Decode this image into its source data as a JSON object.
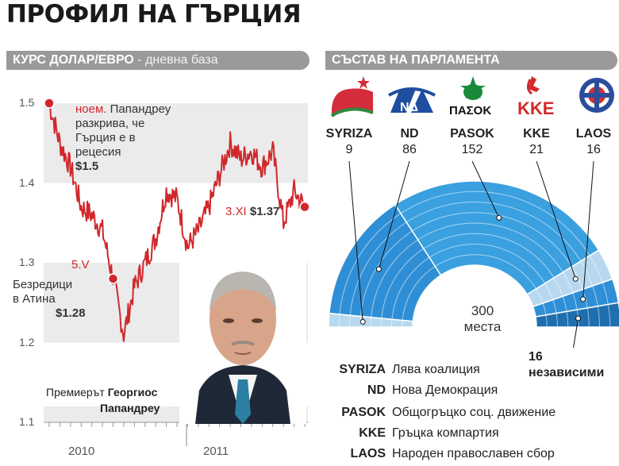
{
  "page": {
    "title": "ПРОФИЛ НА ГЪРЦИЯ"
  },
  "left_panel": {
    "header_main": "КУРС ДОЛАР/ЕВРО",
    "header_sub": " - дневна база"
  },
  "right_panel": {
    "header_main": "СЪСТАВ НА ПАРЛАМЕНТА"
  },
  "annotations": {
    "nov_date": "ноем.",
    "nov_text_1": "Папандреу",
    "nov_text_2": "разкрива, че",
    "nov_text_3": "Гърция е в",
    "nov_text_4": "рецесия",
    "nov_value": "$1.5",
    "may_date": "5.V",
    "may_text_1": "Безредици",
    "may_text_2": "в Атина",
    "may_value": "$1.28",
    "xi_date": "3.XI",
    "xi_value": "$1.37"
  },
  "caption": {
    "prefix": "Премиерът",
    "name_1": "Георгиос",
    "name_2": "Папандреу"
  },
  "parliament": {
    "total_value": "300",
    "total_label": "места",
    "independents_value": "16",
    "independents_label": "независими",
    "parties": [
      {
        "abbr": "SYRIZA",
        "seats": "9",
        "full": "Лява коалиция",
        "logo_text": "",
        "color": "#d42d3b"
      },
      {
        "abbr": "ND",
        "seats": "86",
        "full": "Нова Демокрация",
        "logo_text": "ΝΔ",
        "color": "#1f4ea0"
      },
      {
        "abbr": "PASOK",
        "seats": "152",
        "full": "Общогръцко соц. движение",
        "logo_text": "ΠΑΣΟΚ",
        "color": "#1a8a3a"
      },
      {
        "abbr": "KKE",
        "seats": "21",
        "full": "Гръцка компартия",
        "logo_text": "KKE",
        "color": "#d22b2b"
      },
      {
        "abbr": "LAOS",
        "seats": "16",
        "full": "Народен православен сбор",
        "logo_text": "",
        "color": "#2a4e9c"
      }
    ]
  },
  "chart_data": [
    {
      "type": "line",
      "title": "КУРС ДОЛАР/ЕВРО",
      "subtitle": "- дневна база",
      "x_tick_labels": [
        "2010",
        "2011"
      ],
      "y_tick_labels": [
        "1.1",
        "1.2",
        "1.3",
        "1.4",
        "1.5"
      ],
      "ylim": [
        1.1,
        1.5
      ],
      "series": [
        {
          "x": [
            "2009-11",
            "2009-12",
            "2010-01",
            "2010-02",
            "2010-03",
            "2010-04",
            "2010-05",
            "2010-06",
            "2010-07",
            "2010-08",
            "2010-09",
            "2010-10",
            "2010-11",
            "2010-12",
            "2011-01",
            "2011-02",
            "2011-03",
            "2011-04",
            "2011-05",
            "2011-06",
            "2011-07",
            "2011-08",
            "2011-09",
            "2011-10",
            "2011-11"
          ],
          "values": [
            1.5,
            1.45,
            1.42,
            1.37,
            1.36,
            1.34,
            1.28,
            1.21,
            1.27,
            1.3,
            1.33,
            1.39,
            1.38,
            1.32,
            1.34,
            1.37,
            1.41,
            1.45,
            1.43,
            1.44,
            1.42,
            1.44,
            1.35,
            1.39,
            1.37
          ]
        }
      ],
      "highlights": [
        {
          "x": "2009-11",
          "value": 1.5,
          "label": "ноем."
        },
        {
          "x": "2010-05",
          "value": 1.28,
          "label": "5.V"
        },
        {
          "x": "2011-11",
          "value": 1.37,
          "label": "3.XI"
        }
      ],
      "grid": true
    },
    {
      "type": "pie",
      "subtitle": "СЪСТАВ НА ПАРЛАМЕНТА",
      "categories": [
        "SYRIZA",
        "ND",
        "PASOK",
        "KKE",
        "LAOS",
        "независими"
      ],
      "values": [
        9,
        86,
        152,
        21,
        16,
        16
      ],
      "total": 300
    }
  ]
}
